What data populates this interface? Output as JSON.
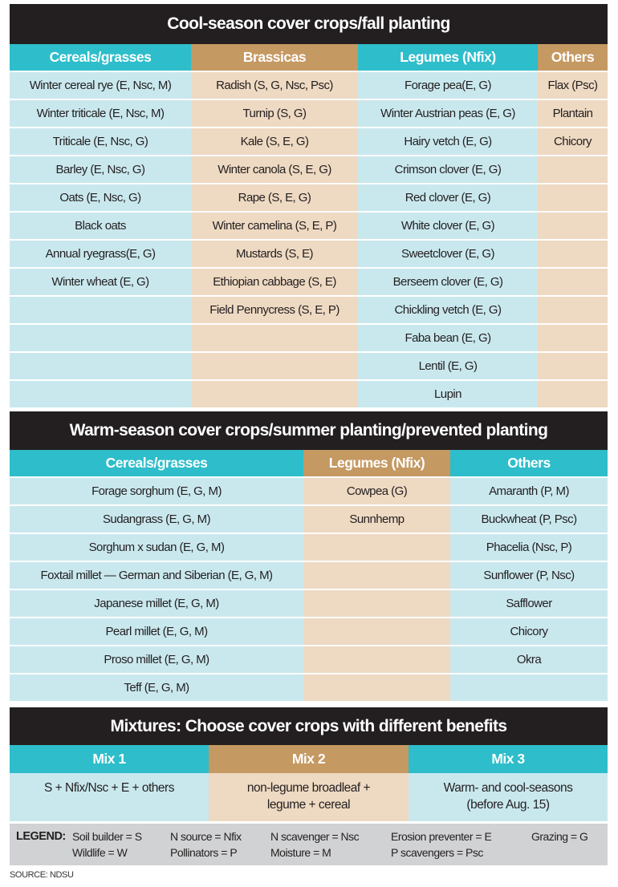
{
  "cool": {
    "title": "Cool-season cover crops/fall planting",
    "columns": [
      {
        "header": "Cereals/grasses",
        "style": "teal",
        "items": [
          "Winter cereal rye (E, Nsc, M)",
          "Winter triticale (E, Nsc, M)",
          "Triticale (E, Nsc, G)",
          "Barley (E, Nsc, G)",
          "Oats (E, Nsc, G)",
          "Black oats",
          "Annual ryegrass(E, G)",
          "Winter wheat (E, G)"
        ]
      },
      {
        "header": "Brassicas",
        "style": "tan",
        "items": [
          "Radish (S, G, Nsc, Psc)",
          "Turnip (S, G)",
          "Kale (S, E, G)",
          "Winter canola (S, E, G)",
          "Rape (S, E, G)",
          "Winter camelina (S, E, P)",
          "Mustards (S, E)",
          "Ethiopian cabbage (S, E)",
          "Field Pennycress (S, E, P)"
        ]
      },
      {
        "header": "Legumes (Nfix)",
        "style": "teal",
        "items": [
          "Forage pea(E, G)",
          "Winter Austrian peas (E, G)",
          "Hairy vetch (E, G)",
          "Crimson clover (E, G)",
          "Red clover (E, G)",
          "White clover (E, G)",
          "Sweetclover (E, G)",
          "Berseem clover (E, G)",
          "Chickling vetch (E, G)",
          "Faba bean (E, G)",
          "Lentil (E, G)",
          "Lupin"
        ]
      },
      {
        "header": "Others",
        "style": "tan",
        "items": [
          "Flax (Psc)",
          "Plantain",
          "Chicory"
        ]
      }
    ]
  },
  "warm": {
    "title": "Warm-season cover crops/summer planting/prevented planting",
    "columns": [
      {
        "header": "Cereals/grasses",
        "style": "teal",
        "items": [
          "Forage sorghum (E, G, M)",
          "Sudangrass (E, G, M)",
          "Sorghum x sudan (E, G, M)",
          "Foxtail millet — German and Siberian (E, G, M)",
          "Japanese millet (E, G, M)",
          "Pearl millet (E, G, M)",
          "Proso millet (E, G, M)",
          "Teff (E, G, M)"
        ]
      },
      {
        "header": "Legumes (Nfix)",
        "style": "tan",
        "items": [
          "Cowpea (G)",
          "Sunnhemp"
        ]
      },
      {
        "header": "Others",
        "style": "teal",
        "items": [
          "Amaranth (P, M)",
          "Buckwheat (P, Psc)",
          "Phacelia (Nsc, P)",
          "Sunflower (P, Nsc)",
          "Safflower",
          "Chicory",
          "Okra"
        ]
      }
    ]
  },
  "mix": {
    "title": "Mixtures: Choose cover crops with different benefits",
    "columns": [
      {
        "header": "Mix 1",
        "style": "teal",
        "lines": [
          "S + Nfix/Nsc + E + others"
        ]
      },
      {
        "header": "Mix 2",
        "style": "tan",
        "lines": [
          "non-legume broadleaf +",
          "legume + cereal"
        ]
      },
      {
        "header": "Mix 3",
        "style": "teal",
        "lines": [
          "Warm- and cool-seasons",
          "(before Aug. 15)"
        ]
      }
    ]
  },
  "legend": {
    "label": "LEGEND:",
    "items": [
      "Soil builder = S",
      "N source = Nfix",
      "N scavenger = Nsc",
      "Erosion preventer = E",
      "Grazing = G",
      "Wildlife = W",
      "Pollinators = P",
      "Moisture = M",
      "P scavengers = Psc"
    ]
  },
  "source": "SOURCE: NDSU",
  "colors": {
    "title_bg": "#231f20",
    "teal": "#2ebdca",
    "tan": "#c59962",
    "light_blue": "#c9e8ee",
    "light_tan": "#eed9c2",
    "legend_bg": "#d1d2d4"
  }
}
